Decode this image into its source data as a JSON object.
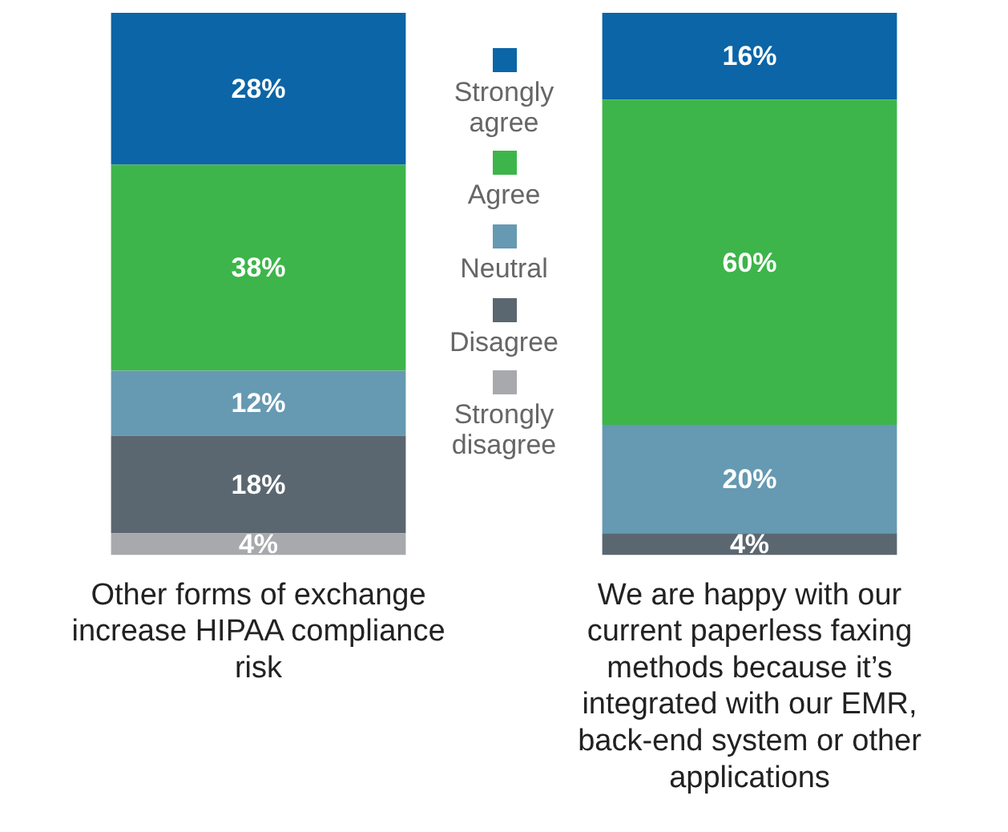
{
  "chart_data": {
    "type": "bar",
    "stacked": true,
    "categories": [
      "Other forms of exchange increase HIPAA compliance risk",
      "We are happy with our current paperless faxing methods because it’s integrated with our EMR, back-end system or other applications"
    ],
    "ylim": [
      0,
      100
    ],
    "tick_labels": "x",
    "grid": false,
    "legend": "center",
    "series": [
      {
        "name": "Strongly disagree",
        "color": "#a7a9ac",
        "values": [
          4,
          0
        ],
        "value_labels": [
          "4%",
          null
        ]
      },
      {
        "name": "Disagree",
        "color": "#5b6770",
        "values": [
          18,
          4
        ],
        "value_labels": [
          "18%",
          "4%"
        ]
      },
      {
        "name": "Neutral",
        "color": "#6699b2",
        "values": [
          12,
          20
        ],
        "value_labels": [
          "12%",
          "20%"
        ]
      },
      {
        "name": "Agree",
        "color": "#3db54a",
        "values": [
          38,
          60
        ],
        "value_labels": [
          "38%",
          "60%"
        ]
      },
      {
        "name": "Strongly agree",
        "color": "#0b65a6",
        "values": [
          28,
          16
        ],
        "value_labels": [
          "28%",
          "16%"
        ]
      }
    ]
  }
}
